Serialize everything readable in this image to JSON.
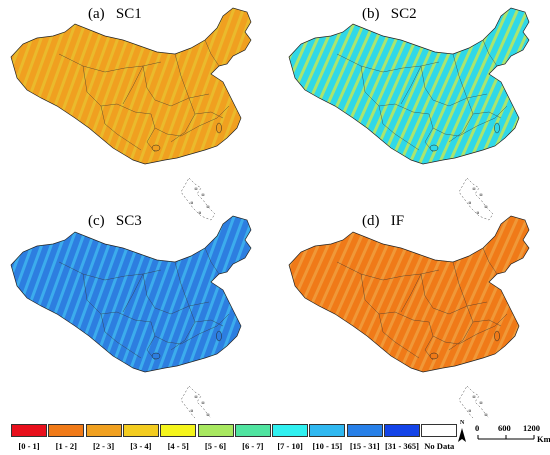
{
  "panels": [
    {
      "label": "(a)   SC1",
      "dominant_class": "[2 - 3]",
      "fill": "#f0a020",
      "stripe": "#e8c030"
    },
    {
      "label": "(b)   SC2",
      "dominant_class": "[7 - 10]",
      "fill": "#30d8e8",
      "stripe": "#c8e850"
    },
    {
      "label": "(c)   SC3",
      "dominant_class": "[15 - 31]",
      "fill": "#2d7ee0",
      "stripe": "#40b8f0"
    },
    {
      "label": "(d)   IF",
      "dominant_class": "[1 - 2]",
      "fill": "#f07a18",
      "stripe": "#f0a040"
    }
  ],
  "legend": [
    {
      "label": "[0 - 1]",
      "color": "#e8101c"
    },
    {
      "label": "[1 - 2]",
      "color": "#f07a18"
    },
    {
      "label": "[2 - 3]",
      "color": "#f0a020"
    },
    {
      "label": "[3 - 4]",
      "color": "#f3cc20"
    },
    {
      "label": "[4 - 5]",
      "color": "#f5f51c"
    },
    {
      "label": "[5 - 6]",
      "color": "#a8e860"
    },
    {
      "label": "[6 - 7]",
      "color": "#50e4a0"
    },
    {
      "label": "[7 - 10]",
      "color": "#30f0f0"
    },
    {
      "label": "[10 - 15]",
      "color": "#30b8f0"
    },
    {
      "label": "[15 - 31]",
      "color": "#2880e8"
    },
    {
      "label": "[31 - 365]",
      "color": "#1444e8"
    },
    {
      "label": "No Data",
      "color": "#ffffff"
    }
  ],
  "scale": {
    "ticks": [
      "0",
      "600",
      "1200"
    ],
    "unit": "Km",
    "north": "N"
  }
}
